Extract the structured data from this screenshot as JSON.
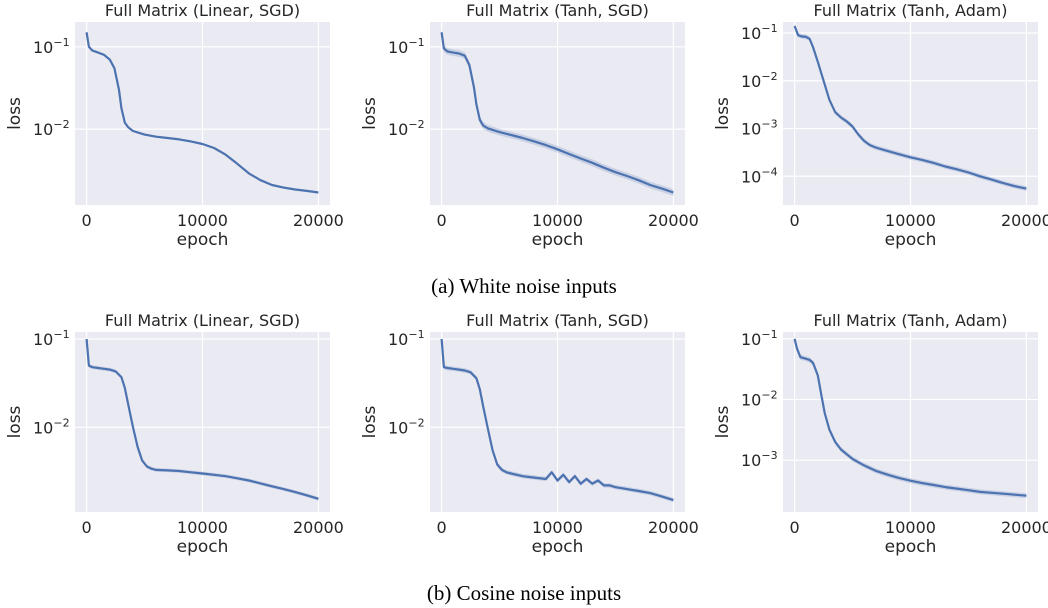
{
  "captions": {
    "a": "(a) White noise inputs",
    "b": "(b) Cosine noise inputs"
  },
  "colors": {
    "line": "#4c72b0",
    "band": "#a9b8d8",
    "plot_bg": "#eaeaf2",
    "grid": "#ffffff"
  },
  "chart_data": [
    {
      "type": "line",
      "title": "Full Matrix (Linear, SGD)",
      "xlabel": "epoch",
      "ylabel": "loss",
      "yscale": "log",
      "xlim": [
        -1000,
        21000
      ],
      "ylim": [
        0.0012,
        0.2
      ],
      "xticks": [
        0,
        10000,
        20000
      ],
      "xtick_labels": [
        "0",
        "10000",
        "20000"
      ],
      "yticks": [
        0.1,
        0.01
      ],
      "ytick_labels": [
        "10^-1",
        "10^-2"
      ],
      "grid": true,
      "x": [
        0,
        200,
        500,
        1000,
        1500,
        2000,
        2400,
        2800,
        3000,
        3300,
        3600,
        4000,
        5000,
        6000,
        7000,
        8000,
        9000,
        10000,
        11000,
        12000,
        13000,
        14000,
        15000,
        16000,
        17000,
        18000,
        19000,
        20000
      ],
      "y": [
        0.15,
        0.1,
        0.09,
        0.085,
        0.08,
        0.07,
        0.055,
        0.03,
        0.018,
        0.012,
        0.0105,
        0.0095,
        0.0086,
        0.0081,
        0.0078,
        0.0075,
        0.0071,
        0.0066,
        0.0059,
        0.0049,
        0.0038,
        0.0029,
        0.0024,
        0.0021,
        0.00195,
        0.00185,
        0.00178,
        0.0017
      ],
      "band": 0.03
    },
    {
      "type": "line",
      "title": "Full Matrix (Tanh, SGD)",
      "xlabel": "epoch",
      "ylabel": "loss",
      "yscale": "log",
      "xlim": [
        -1000,
        21000
      ],
      "ylim": [
        0.0012,
        0.2
      ],
      "xticks": [
        0,
        10000,
        20000
      ],
      "xtick_labels": [
        "0",
        "10000",
        "20000"
      ],
      "yticks": [
        0.1,
        0.01
      ],
      "ytick_labels": [
        "10^-1",
        "10^-2"
      ],
      "grid": true,
      "x": [
        0,
        200,
        500,
        1000,
        1500,
        2000,
        2400,
        2800,
        3000,
        3300,
        3600,
        4000,
        5000,
        6000,
        7000,
        8000,
        9000,
        10000,
        11000,
        12000,
        13000,
        14000,
        15000,
        16000,
        17000,
        18000,
        19000,
        20000
      ],
      "y": [
        0.15,
        0.095,
        0.088,
        0.085,
        0.083,
        0.078,
        0.06,
        0.032,
        0.02,
        0.013,
        0.011,
        0.0102,
        0.0092,
        0.0085,
        0.0078,
        0.0071,
        0.0064,
        0.0057,
        0.005,
        0.0044,
        0.0039,
        0.0034,
        0.003,
        0.0027,
        0.0024,
        0.0021,
        0.0019,
        0.0017
      ],
      "band": 0.1
    },
    {
      "type": "line",
      "title": "Full Matrix (Tanh, Adam)",
      "xlabel": "epoch",
      "ylabel": "loss",
      "yscale": "log",
      "xlim": [
        -1000,
        21000
      ],
      "ylim": [
        2.5e-05,
        0.17
      ],
      "xticks": [
        0,
        10000,
        20000
      ],
      "xtick_labels": [
        "0",
        "10000",
        "20000"
      ],
      "yticks": [
        0.1,
        0.01,
        0.001,
        0.0001
      ],
      "ytick_labels": [
        "10^-1",
        "10^-2",
        "10^-3",
        "10^-4"
      ],
      "grid": true,
      "x": [
        0,
        300,
        600,
        1000,
        1300,
        1600,
        2000,
        2500,
        3000,
        3500,
        4000,
        4500,
        5000,
        5500,
        6000,
        6500,
        7000,
        8000,
        9000,
        10000,
        11000,
        12000,
        13000,
        14000,
        15000,
        16000,
        17000,
        18000,
        19000,
        20000
      ],
      "y": [
        0.14,
        0.09,
        0.085,
        0.083,
        0.075,
        0.05,
        0.025,
        0.01,
        0.004,
        0.0022,
        0.0017,
        0.0014,
        0.0011,
        0.00075,
        0.00055,
        0.00045,
        0.0004,
        0.00034,
        0.00029,
        0.00025,
        0.00022,
        0.00019,
        0.00016,
        0.00014,
        0.00012,
        0.0001,
        8.5e-05,
        7.2e-05,
        6.2e-05,
        5.5e-05
      ],
      "band": 0.12
    },
    {
      "type": "line",
      "title": "Full Matrix (Linear, SGD)",
      "xlabel": "epoch",
      "ylabel": "loss",
      "yscale": "log",
      "xlim": [
        -1000,
        21000
      ],
      "ylim": [
        0.0011,
        0.12
      ],
      "xticks": [
        0,
        10000,
        20000
      ],
      "xtick_labels": [
        "0",
        "10000",
        "20000"
      ],
      "yticks": [
        0.1,
        0.01
      ],
      "ytick_labels": [
        "10^-1",
        "10^-2"
      ],
      "grid": true,
      "x": [
        0,
        200,
        500,
        1000,
        1500,
        2000,
        2500,
        3000,
        3300,
        3600,
        4000,
        4400,
        4800,
        5200,
        5600,
        6000,
        7000,
        8000,
        9000,
        10000,
        11000,
        12000,
        13000,
        14000,
        15000,
        16000,
        17000,
        18000,
        19000,
        20000
      ],
      "y": [
        0.1,
        0.05,
        0.048,
        0.047,
        0.046,
        0.045,
        0.043,
        0.037,
        0.028,
        0.018,
        0.01,
        0.006,
        0.0042,
        0.0036,
        0.0034,
        0.0033,
        0.00325,
        0.0032,
        0.0031,
        0.003,
        0.0029,
        0.0028,
        0.00265,
        0.0025,
        0.00232,
        0.00215,
        0.002,
        0.00185,
        0.0017,
        0.00155
      ],
      "band": 0.05
    },
    {
      "type": "line",
      "title": "Full Matrix (Tanh, SGD)",
      "xlabel": "epoch",
      "ylabel": "loss",
      "yscale": "log",
      "xlim": [
        -1000,
        21000
      ],
      "ylim": [
        0.0011,
        0.12
      ],
      "xticks": [
        0,
        10000,
        20000
      ],
      "xtick_labels": [
        "0",
        "10000",
        "20000"
      ],
      "yticks": [
        0.1,
        0.01
      ],
      "ytick_labels": [
        "10^-1",
        "10^-2"
      ],
      "grid": true,
      "x": [
        0,
        200,
        500,
        1000,
        1500,
        2000,
        2500,
        3000,
        3300,
        3600,
        4000,
        4400,
        4800,
        5200,
        5600,
        6000,
        7000,
        8000,
        9000,
        9500,
        10000,
        10500,
        11000,
        11500,
        12000,
        12500,
        13000,
        13500,
        14000,
        14500,
        15000,
        16000,
        17000,
        18000,
        19000,
        20000
      ],
      "y": [
        0.1,
        0.048,
        0.047,
        0.046,
        0.045,
        0.044,
        0.042,
        0.036,
        0.027,
        0.017,
        0.0095,
        0.0055,
        0.0038,
        0.0033,
        0.0031,
        0.003,
        0.0028,
        0.0027,
        0.0026,
        0.0031,
        0.0025,
        0.0029,
        0.0024,
        0.0028,
        0.0023,
        0.0026,
        0.0023,
        0.0025,
        0.0022,
        0.0022,
        0.0021,
        0.002,
        0.0019,
        0.0018,
        0.00165,
        0.0015
      ],
      "band": 0.06
    },
    {
      "type": "line",
      "title": "Full Matrix (Tanh, Adam)",
      "xlabel": "epoch",
      "ylabel": "loss",
      "yscale": "log",
      "xlim": [
        -1000,
        21000
      ],
      "ylim": [
        0.00014,
        0.13
      ],
      "xticks": [
        0,
        10000,
        20000
      ],
      "xtick_labels": [
        "0",
        "10000",
        "20000"
      ],
      "yticks": [
        0.1,
        0.01,
        0.001
      ],
      "ytick_labels": [
        "10^-1",
        "10^-2",
        "10^-3"
      ],
      "grid": true,
      "x": [
        0,
        200,
        500,
        1000,
        1300,
        1600,
        2000,
        2300,
        2600,
        3000,
        3500,
        4000,
        4500,
        5000,
        6000,
        7000,
        8000,
        9000,
        10000,
        11000,
        12000,
        13000,
        14000,
        15000,
        16000,
        17000,
        18000,
        19000,
        20000
      ],
      "y": [
        0.1,
        0.07,
        0.05,
        0.047,
        0.045,
        0.04,
        0.025,
        0.012,
        0.006,
        0.0032,
        0.002,
        0.0015,
        0.00125,
        0.00105,
        0.00082,
        0.00067,
        0.00058,
        0.00051,
        0.00046,
        0.00042,
        0.00039,
        0.00036,
        0.00034,
        0.00032,
        0.0003,
        0.00029,
        0.00028,
        0.00027,
        0.00026
      ],
      "band": 0.1
    }
  ]
}
